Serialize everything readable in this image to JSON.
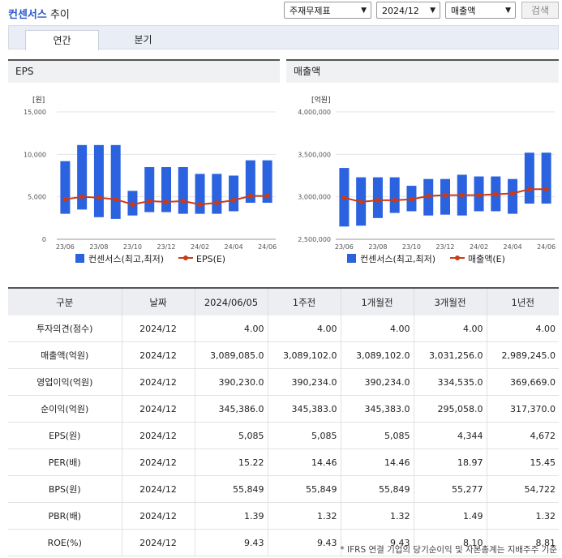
{
  "header": {
    "title_strong": "컨센서스",
    "title_rest": " 추이",
    "select_type": "주재무제표",
    "select_date": "2024/12",
    "select_metric": "매출액",
    "search_label": "검색"
  },
  "tabs": [
    {
      "label": "연간",
      "active": true
    },
    {
      "label": "분기",
      "active": false
    }
  ],
  "colors": {
    "bar": "#2a62e0",
    "line": "#cc3a16",
    "accent": "#2a56c6"
  },
  "charts": [
    {
      "title": "EPS",
      "unit_label": "[원]",
      "legend_bar": "컨센서스(최고,최저)",
      "legend_line": "EPS(E)"
    },
    {
      "title": "매출액",
      "unit_label": "[억원]",
      "legend_bar": "컨센서스(최고,최저)",
      "legend_line": "매출액(E)"
    }
  ],
  "chart_data": [
    {
      "type": "bar",
      "title": "EPS",
      "ylabel": "[원]",
      "ylim": [
        0,
        15000
      ],
      "yticks": [
        0,
        5000,
        10000,
        15000
      ],
      "ytick_labels": [
        "0",
        "5,000",
        "10,000",
        "15,000"
      ],
      "xtick_labels": [
        "23/06",
        "23/08",
        "23/10",
        "23/12",
        "24/02",
        "24/04",
        "24/06"
      ],
      "periods": 13,
      "series": [
        {
          "name": "컨센서스(최고,최저)",
          "kind": "range",
          "high": [
            9200,
            11100,
            11100,
            11100,
            5700,
            8500,
            8500,
            8500,
            7700,
            7700,
            7500,
            9300,
            9300
          ],
          "low": [
            3000,
            3500,
            2600,
            2400,
            2800,
            3200,
            3200,
            3000,
            3000,
            3000,
            3300,
            4300,
            4300
          ]
        },
        {
          "name": "EPS(E)",
          "kind": "line",
          "values": [
            4700,
            5000,
            4900,
            4700,
            4100,
            4500,
            4400,
            4500,
            4100,
            4300,
            4600,
            5100,
            5100
          ]
        }
      ]
    },
    {
      "type": "bar",
      "title": "매출액",
      "ylabel": "[억원]",
      "ylim": [
        2500000,
        4000000
      ],
      "yticks": [
        2500000,
        3000000,
        3500000,
        4000000
      ],
      "ytick_labels": [
        "2,500,000",
        "3,000,000",
        "3,500,000",
        "4,000,000"
      ],
      "xtick_labels": [
        "23/06",
        "23/08",
        "23/10",
        "23/12",
        "24/02",
        "24/04",
        "24/06"
      ],
      "periods": 13,
      "series": [
        {
          "name": "컨센서스(최고,최저)",
          "kind": "range",
          "high": [
            3340000,
            3230000,
            3230000,
            3230000,
            3130000,
            3210000,
            3210000,
            3260000,
            3240000,
            3240000,
            3210000,
            3520000,
            3520000
          ],
          "low": [
            2650000,
            2660000,
            2750000,
            2810000,
            2830000,
            2780000,
            2790000,
            2780000,
            2830000,
            2830000,
            2800000,
            2920000,
            2920000
          ]
        },
        {
          "name": "매출액(E)",
          "kind": "line",
          "values": [
            2990000,
            2940000,
            2960000,
            2960000,
            2970000,
            3010000,
            3020000,
            3020000,
            3020000,
            3030000,
            3040000,
            3090000,
            3090000
          ]
        }
      ]
    }
  ],
  "table": {
    "headers": [
      "구분",
      "날짜",
      "2024/06/05",
      "1주전",
      "1개월전",
      "3개월전",
      "1년전"
    ],
    "rows": [
      [
        "투자의견(점수)",
        "2024/12",
        "4.00",
        "4.00",
        "4.00",
        "4.00",
        "4.00"
      ],
      [
        "매출액(억원)",
        "2024/12",
        "3,089,085.0",
        "3,089,102.0",
        "3,089,102.0",
        "3,031,256.0",
        "2,989,245.0"
      ],
      [
        "영업이익(억원)",
        "2024/12",
        "390,230.0",
        "390,234.0",
        "390,234.0",
        "334,535.0",
        "369,669.0"
      ],
      [
        "순이익(억원)",
        "2024/12",
        "345,386.0",
        "345,383.0",
        "345,383.0",
        "295,058.0",
        "317,370.0"
      ],
      [
        "EPS(원)",
        "2024/12",
        "5,085",
        "5,085",
        "5,085",
        "4,344",
        "4,672"
      ],
      [
        "PER(배)",
        "2024/12",
        "15.22",
        "14.46",
        "14.46",
        "18.97",
        "15.45"
      ],
      [
        "BPS(원)",
        "2024/12",
        "55,849",
        "55,849",
        "55,849",
        "55,277",
        "54,722"
      ],
      [
        "PBR(배)",
        "2024/12",
        "1.39",
        "1.32",
        "1.32",
        "1.49",
        "1.32"
      ],
      [
        "ROE(%)",
        "2024/12",
        "9.43",
        "9.43",
        "9.43",
        "8.10",
        "8.81"
      ]
    ]
  },
  "footnote": "* IFRS 연결 기업의 당기순이익 및 자본총계는 지배주주 기준"
}
